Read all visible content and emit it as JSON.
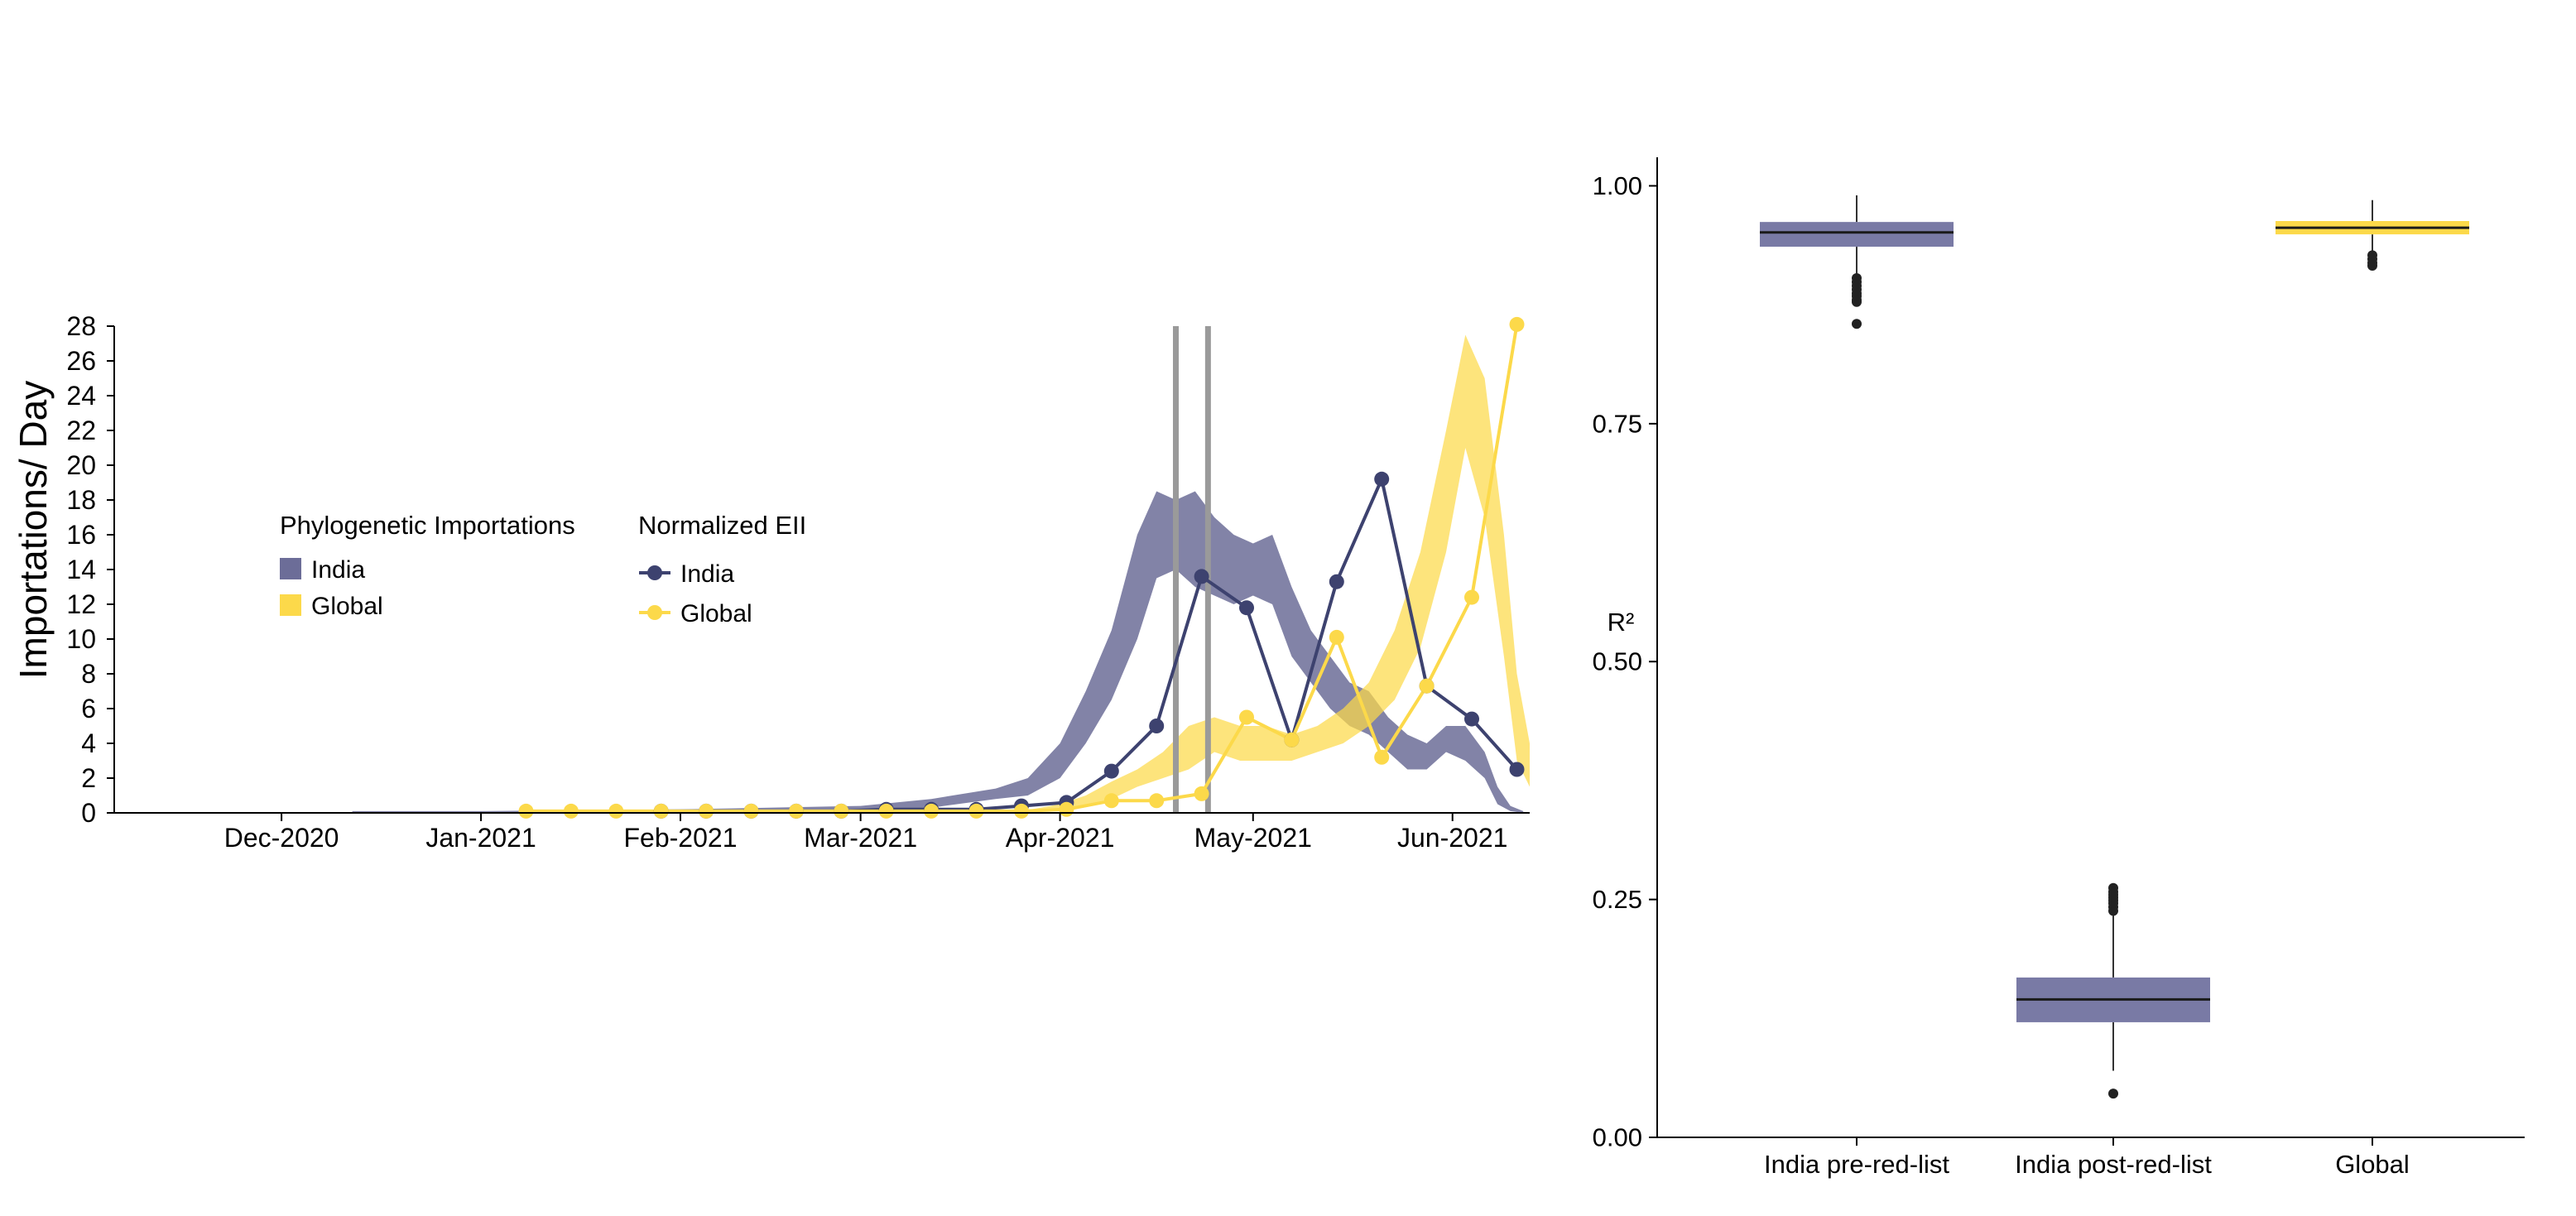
{
  "colors": {
    "india_band": "#6c6d98",
    "global_band": "#fcd94a",
    "india_line": "#3d426f",
    "global_line": "#fcd94a",
    "marker_lines": "#9a9a9a",
    "box_india": "#797aa5",
    "box_global": "#fcd94a"
  },
  "chart_data": [
    {
      "type": "area",
      "ylabel": "Importations/ Day",
      "xlabel": "",
      "ylim": [
        0,
        28
      ],
      "xlim": [
        "2020-11-05",
        "2021-06-13"
      ],
      "y_ticks": [
        "0",
        "2",
        "4",
        "6",
        "8",
        "10",
        "12",
        "14",
        "16",
        "18",
        "20",
        "22",
        "24",
        "26",
        "28"
      ],
      "x_ticks": [
        {
          "date": "2020-12-01",
          "label": "Dec-2020"
        },
        {
          "date": "2021-01-01",
          "label": "Jan-2021"
        },
        {
          "date": "2021-02-01",
          "label": "Feb-2021"
        },
        {
          "date": "2021-03-01",
          "label": "Mar-2021"
        },
        {
          "date": "2021-04-01",
          "label": "Apr-2021"
        },
        {
          "date": "2021-05-01",
          "label": "May-2021"
        },
        {
          "date": "2021-06-01",
          "label": "Jun-2021"
        }
      ],
      "vertical_markers": [
        "2021-04-19",
        "2021-04-24"
      ],
      "legend_bands_title": "Phylogenetic Importations",
      "legend_lines_title": "Normalized EII",
      "bands": [
        {
          "name": "India",
          "color": "#6c6d98",
          "points": [
            {
              "x": "2020-12-12",
              "lo": 0,
              "hi": 0.1
            },
            {
              "x": "2021-01-01",
              "lo": 0,
              "hi": 0.1
            },
            {
              "x": "2021-02-01",
              "lo": 0,
              "hi": 0.2
            },
            {
              "x": "2021-03-01",
              "lo": 0.1,
              "hi": 0.4
            },
            {
              "x": "2021-03-12",
              "lo": 0.3,
              "hi": 0.8
            },
            {
              "x": "2021-03-22",
              "lo": 0.8,
              "hi": 1.4
            },
            {
              "x": "2021-03-27",
              "lo": 1.0,
              "hi": 2.0
            },
            {
              "x": "2021-04-01",
              "lo": 2.0,
              "hi": 4.0
            },
            {
              "x": "2021-04-05",
              "lo": 4.0,
              "hi": 7.0
            },
            {
              "x": "2021-04-09",
              "lo": 6.5,
              "hi": 10.5
            },
            {
              "x": "2021-04-13",
              "lo": 10.0,
              "hi": 16.0
            },
            {
              "x": "2021-04-16",
              "lo": 13.5,
              "hi": 18.5
            },
            {
              "x": "2021-04-19",
              "lo": 14.0,
              "hi": 18.0
            },
            {
              "x": "2021-04-22",
              "lo": 13.0,
              "hi": 18.5
            },
            {
              "x": "2021-04-25",
              "lo": 12.5,
              "hi": 17.0
            },
            {
              "x": "2021-04-28",
              "lo": 12.0,
              "hi": 16.0
            },
            {
              "x": "2021-05-01",
              "lo": 12.5,
              "hi": 15.5
            },
            {
              "x": "2021-05-04",
              "lo": 12.0,
              "hi": 16.0
            },
            {
              "x": "2021-05-07",
              "lo": 9.0,
              "hi": 13.0
            },
            {
              "x": "2021-05-10",
              "lo": 7.5,
              "hi": 10.5
            },
            {
              "x": "2021-05-13",
              "lo": 6.0,
              "hi": 9.0
            },
            {
              "x": "2021-05-16",
              "lo": 5.0,
              "hi": 7.5
            },
            {
              "x": "2021-05-19",
              "lo": 4.5,
              "hi": 7.0
            },
            {
              "x": "2021-05-22",
              "lo": 3.5,
              "hi": 5.5
            },
            {
              "x": "2021-05-25",
              "lo": 2.5,
              "hi": 4.5
            },
            {
              "x": "2021-05-28",
              "lo": 2.5,
              "hi": 4.0
            },
            {
              "x": "2021-05-31",
              "lo": 3.5,
              "hi": 5.0
            },
            {
              "x": "2021-06-03",
              "lo": 3.0,
              "hi": 5.0
            },
            {
              "x": "2021-06-06",
              "lo": 2.0,
              "hi": 3.5
            },
            {
              "x": "2021-06-08",
              "lo": 0.5,
              "hi": 1.5
            },
            {
              "x": "2021-06-10",
              "lo": 0.1,
              "hi": 0.4
            },
            {
              "x": "2021-06-12",
              "lo": 0,
              "hi": 0.1
            }
          ]
        },
        {
          "name": "Global",
          "color": "#fcd94a",
          "points": [
            {
              "x": "2021-03-26",
              "lo": 0,
              "hi": 0.1
            },
            {
              "x": "2021-04-01",
              "lo": 0.2,
              "hi": 0.5
            },
            {
              "x": "2021-04-05",
              "lo": 0.5,
              "hi": 1.0
            },
            {
              "x": "2021-04-09",
              "lo": 0.8,
              "hi": 1.8
            },
            {
              "x": "2021-04-13",
              "lo": 1.5,
              "hi": 2.5
            },
            {
              "x": "2021-04-17",
              "lo": 2.0,
              "hi": 3.5
            },
            {
              "x": "2021-04-21",
              "lo": 2.5,
              "hi": 5.0
            },
            {
              "x": "2021-04-25",
              "lo": 3.5,
              "hi": 5.5
            },
            {
              "x": "2021-04-29",
              "lo": 3.0,
              "hi": 5.0
            },
            {
              "x": "2021-05-03",
              "lo": 3.0,
              "hi": 5.0
            },
            {
              "x": "2021-05-07",
              "lo": 3.0,
              "hi": 4.5
            },
            {
              "x": "2021-05-11",
              "lo": 3.5,
              "hi": 5.0
            },
            {
              "x": "2021-05-15",
              "lo": 4.0,
              "hi": 6.0
            },
            {
              "x": "2021-05-19",
              "lo": 5.0,
              "hi": 7.5
            },
            {
              "x": "2021-05-23",
              "lo": 6.5,
              "hi": 10.5
            },
            {
              "x": "2021-05-27",
              "lo": 9.5,
              "hi": 15.0
            },
            {
              "x": "2021-05-31",
              "lo": 15.0,
              "hi": 22.0
            },
            {
              "x": "2021-06-03",
              "lo": 21.0,
              "hi": 27.5
            },
            {
              "x": "2021-06-06",
              "lo": 17.0,
              "hi": 25.0
            },
            {
              "x": "2021-06-09",
              "lo": 9.0,
              "hi": 16.0
            },
            {
              "x": "2021-06-11",
              "lo": 3.0,
              "hi": 8.0
            },
            {
              "x": "2021-06-13",
              "lo": 1.5,
              "hi": 4.0
            }
          ]
        }
      ],
      "series": [
        {
          "name": "India",
          "color": "#3d426f",
          "points": [
            {
              "x": "2021-01-29",
              "y": 0.1
            },
            {
              "x": "2021-02-05",
              "y": 0.1
            },
            {
              "x": "2021-02-12",
              "y": 0.1
            },
            {
              "x": "2021-02-19",
              "y": 0.1
            },
            {
              "x": "2021-02-26",
              "y": 0.1
            },
            {
              "x": "2021-03-05",
              "y": 0.2
            },
            {
              "x": "2021-03-12",
              "y": 0.2
            },
            {
              "x": "2021-03-19",
              "y": 0.2
            },
            {
              "x": "2021-03-26",
              "y": 0.4
            },
            {
              "x": "2021-04-02",
              "y": 0.6
            },
            {
              "x": "2021-04-09",
              "y": 2.4
            },
            {
              "x": "2021-04-16",
              "y": 5.0
            },
            {
              "x": "2021-04-23",
              "y": 13.6
            },
            {
              "x": "2021-04-30",
              "y": 11.8
            },
            {
              "x": "2021-05-07",
              "y": 4.2
            },
            {
              "x": "2021-05-14",
              "y": 13.3
            },
            {
              "x": "2021-05-21",
              "y": 19.2
            },
            {
              "x": "2021-05-28",
              "y": 7.3
            },
            {
              "x": "2021-06-04",
              "y": 5.4
            },
            {
              "x": "2021-06-11",
              "y": 2.5
            }
          ]
        },
        {
          "name": "Global",
          "color": "#fcd94a",
          "points": [
            {
              "x": "2021-01-08",
              "y": 0.1
            },
            {
              "x": "2021-01-15",
              "y": 0.1
            },
            {
              "x": "2021-01-22",
              "y": 0.1
            },
            {
              "x": "2021-01-29",
              "y": 0.1
            },
            {
              "x": "2021-02-05",
              "y": 0.1
            },
            {
              "x": "2021-02-12",
              "y": 0.1
            },
            {
              "x": "2021-02-19",
              "y": 0.1
            },
            {
              "x": "2021-02-26",
              "y": 0.1
            },
            {
              "x": "2021-03-05",
              "y": 0.1
            },
            {
              "x": "2021-03-12",
              "y": 0.1
            },
            {
              "x": "2021-03-19",
              "y": 0.1
            },
            {
              "x": "2021-03-26",
              "y": 0.1
            },
            {
              "x": "2021-04-02",
              "y": 0.2
            },
            {
              "x": "2021-04-09",
              "y": 0.7
            },
            {
              "x": "2021-04-16",
              "y": 0.7
            },
            {
              "x": "2021-04-23",
              "y": 1.1
            },
            {
              "x": "2021-04-30",
              "y": 5.5
            },
            {
              "x": "2021-05-07",
              "y": 4.2
            },
            {
              "x": "2021-05-14",
              "y": 10.1
            },
            {
              "x": "2021-05-21",
              "y": 3.2
            },
            {
              "x": "2021-05-28",
              "y": 7.3
            },
            {
              "x": "2021-06-04",
              "y": 12.4
            },
            {
              "x": "2021-06-11",
              "y": 28.1
            }
          ]
        }
      ]
    },
    {
      "type": "box",
      "ylabel": "R²",
      "xlabel": "",
      "ylim": [
        0,
        1.03
      ],
      "y_ticks": [
        "0.00",
        "0.25",
        "0.50",
        "0.75",
        "1.00"
      ],
      "categories": [
        "India pre-red-list",
        "India post-red-list",
        "Global"
      ],
      "boxes": [
        {
          "name": "India pre-red-list",
          "color": "#797aa5",
          "q1": 0.936,
          "median": 0.951,
          "q3": 0.962,
          "whisker_low": 0.905,
          "whisker_high": 0.99,
          "outliers": [
            0.903,
            0.899,
            0.895,
            0.891,
            0.887,
            0.884,
            0.88,
            0.878,
            0.855
          ]
        },
        {
          "name": "India post-red-list",
          "color": "#797aa5",
          "q1": 0.121,
          "median": 0.145,
          "q3": 0.168,
          "whisker_low": 0.07,
          "whisker_high": 0.235,
          "outliers": [
            0.238,
            0.242,
            0.246,
            0.249,
            0.252,
            0.255,
            0.258,
            0.262,
            0.046
          ]
        },
        {
          "name": "Global",
          "color": "#fcd94a",
          "q1": 0.949,
          "median": 0.956,
          "q3": 0.963,
          "whisker_low": 0.93,
          "whisker_high": 0.985,
          "outliers": [
            0.927,
            0.923,
            0.919,
            0.916
          ]
        }
      ]
    }
  ]
}
